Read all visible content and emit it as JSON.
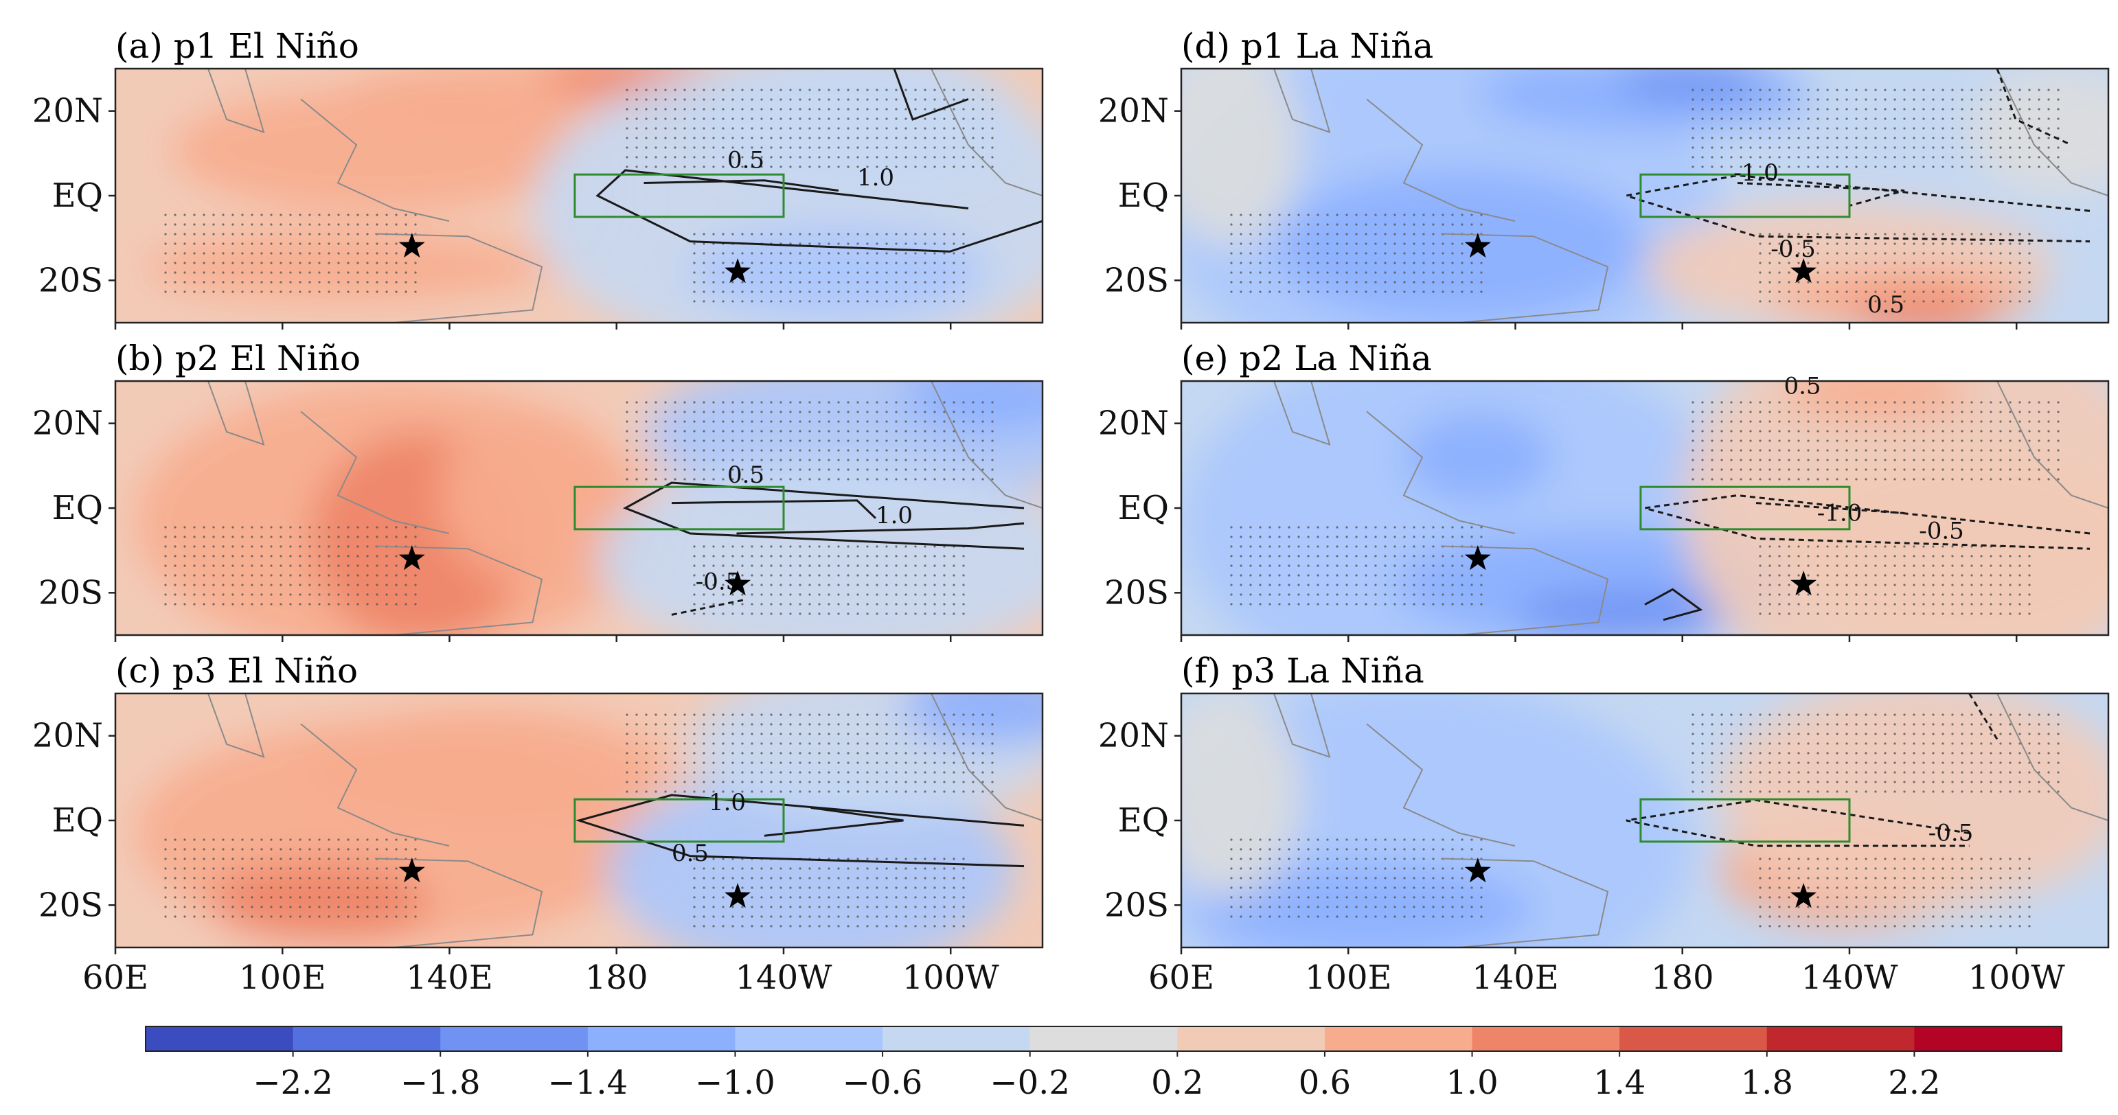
{
  "chart_data": {
    "type": "heatmap",
    "description_units": "composite anomaly (shaded) with contours; lon 60E-100W, lat ~28S-28N",
    "x_ticks": [
      "60E",
      "100E",
      "140E",
      "180",
      "140W",
      "100W"
    ],
    "x_tick_lon": [
      60,
      100,
      140,
      180,
      220,
      260
    ],
    "x_range_lon": [
      60,
      282
    ],
    "y_ticks": [
      "20N",
      "EQ",
      "20S"
    ],
    "y_tick_lat": [
      20,
      0,
      -20
    ],
    "y_range_lat": [
      -30,
      30
    ],
    "box_region_lon": [
      170,
      220
    ],
    "box_region_lat": [
      -5,
      5
    ],
    "colorbar": {
      "levels": [
        -2.6,
        -2.2,
        -1.8,
        -1.4,
        -1.0,
        -0.6,
        -0.2,
        0.2,
        0.6,
        1.0,
        1.4,
        1.8,
        2.2,
        2.6
      ],
      "tick_labels": [
        "−2.2",
        "−1.8",
        "−1.4",
        "−1.0",
        "−0.6",
        "−0.2",
        "0.2",
        "0.6",
        "1.0",
        "1.4",
        "1.8",
        "2.2"
      ],
      "colors": [
        "#3b4cc0",
        "#5470de",
        "#6f92f3",
        "#8caffe",
        "#aac7fd",
        "#c5d8f2",
        "#dddddd",
        "#f2cbb7",
        "#f7ac8e",
        "#ee8468",
        "#d95847",
        "#c0282d",
        "#b40426"
      ]
    },
    "panels": [
      {
        "id": "a",
        "title": "(a) p1  El Niño",
        "event": "El Niño",
        "period": "p1",
        "contour_labels": [
          "0.5",
          "1.0"
        ],
        "markers": [
          {
            "lon": 131,
            "lat": -12
          },
          {
            "lon": 209,
            "lat": -18
          }
        ]
      },
      {
        "id": "b",
        "title": "(b) p2  El Niño",
        "event": "El Niño",
        "period": "p2",
        "contour_labels": [
          "0.5",
          "1.0",
          "-0.5"
        ],
        "markers": [
          {
            "lon": 131,
            "lat": -12
          },
          {
            "lon": 209,
            "lat": -18
          }
        ]
      },
      {
        "id": "c",
        "title": "(c) p3  El Niño",
        "event": "El Niño",
        "period": "p3",
        "contour_labels": [
          "1.0",
          "0.5"
        ],
        "markers": [
          {
            "lon": 131,
            "lat": -12
          },
          {
            "lon": 209,
            "lat": -18
          }
        ]
      },
      {
        "id": "d",
        "title": "(d) p1  La Niña",
        "event": "La Niña",
        "period": "p1",
        "contour_labels": [
          "-1.0",
          "-0.5",
          "0.5"
        ],
        "markers": [
          {
            "lon": 131,
            "lat": -12
          },
          {
            "lon": 209,
            "lat": -18
          }
        ]
      },
      {
        "id": "e",
        "title": "(e) p2  La Niña",
        "event": "La Niña",
        "period": "p2",
        "contour_labels": [
          "0.5",
          "-1.0",
          "-0.5"
        ],
        "markers": [
          {
            "lon": 131,
            "lat": -12
          },
          {
            "lon": 209,
            "lat": -18
          }
        ]
      },
      {
        "id": "f",
        "title": "(f) p3  La Niña",
        "event": "La Niña",
        "period": "p3",
        "contour_labels": [
          "-0.5"
        ],
        "markers": [
          {
            "lon": 131,
            "lat": -12
          },
          {
            "lon": 209,
            "lat": -18
          }
        ]
      }
    ]
  }
}
